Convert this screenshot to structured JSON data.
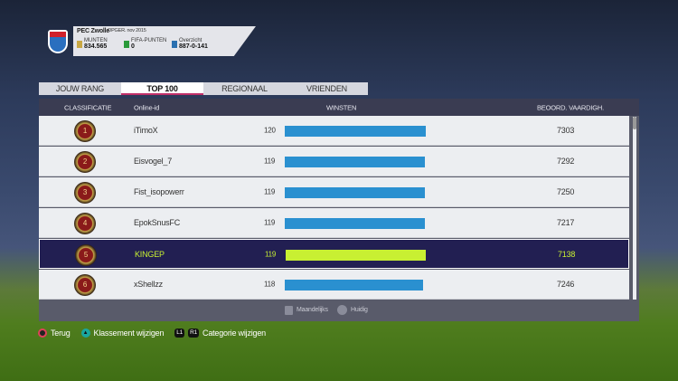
{
  "club": {
    "name": "PEC Zwolle",
    "since": "OPGER. nov 2015",
    "coins_label": "MUNTEN",
    "coins": "834.565",
    "points_label": "FIFA-PUNTEN",
    "points": "0",
    "overview_label": "Overzicht",
    "overview": "887-0-141"
  },
  "tabs": [
    {
      "label": "JOUW RANG"
    },
    {
      "label": "TOP 100",
      "active": true
    },
    {
      "label": "REGIONAAL"
    },
    {
      "label": "VRIENDEN"
    }
  ],
  "table": {
    "headers": {
      "rank": "CLASSIFICATIE",
      "id": "Online-id",
      "wins": "WINSTEN",
      "skill": "BEOORD. VAARDIGH."
    },
    "rows": [
      {
        "rank": "1",
        "id": "iTimoX",
        "wins": "120",
        "skill": "7303"
      },
      {
        "rank": "2",
        "id": "Eisvogel_7",
        "wins": "119",
        "skill": "7292"
      },
      {
        "rank": "3",
        "id": "Fist_isopowerr",
        "wins": "119",
        "skill": "7250"
      },
      {
        "rank": "4",
        "id": "EpokSnusFC",
        "wins": "119",
        "skill": "7217"
      },
      {
        "rank": "5",
        "id": "KINGEP",
        "wins": "119",
        "skill": "7138",
        "highlighted": true
      },
      {
        "rank": "6",
        "id": "xShellzz",
        "wins": "118",
        "skill": "7246"
      }
    ]
  },
  "footer": {
    "monthly": "Maandelijks",
    "current": "Huidig"
  },
  "hints": {
    "back": "Terug",
    "change_ranking": "Klassement wijzigen",
    "l1": "L1",
    "r1": "R1",
    "change_category": "Categorie wijzigen"
  },
  "colors": {
    "bar": "#2a90d0",
    "highlight_bar": "#c8f032",
    "highlight_row": "#221f52"
  }
}
